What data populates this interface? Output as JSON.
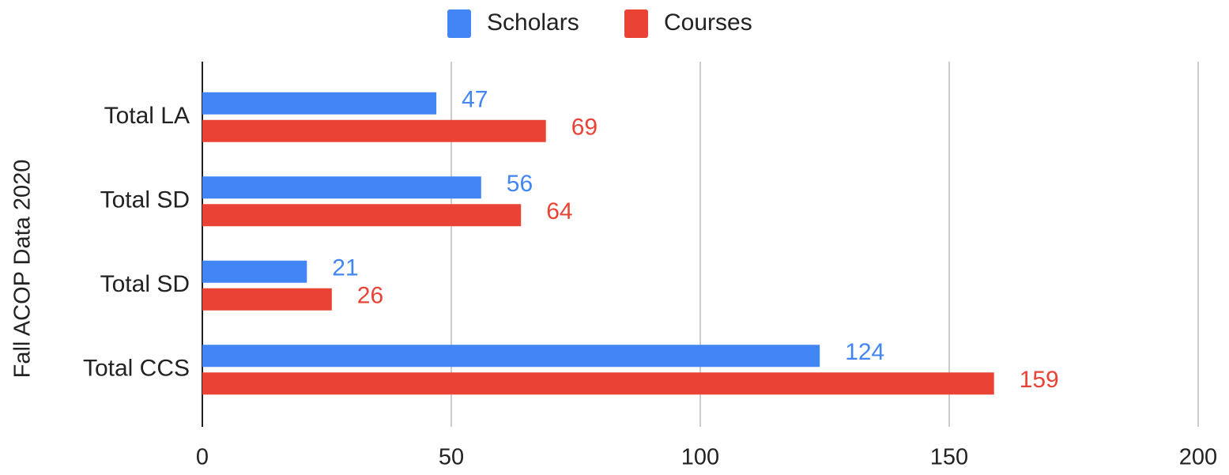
{
  "chart_data": {
    "type": "barh",
    "ylabel": "Fall ACOP Data 2020",
    "categories": [
      "Total LA",
      "Total SD",
      "Total SD",
      "Total CCS"
    ],
    "series": [
      {
        "name": "Scholars",
        "color": "#4285f4",
        "values": [
          47,
          56,
          21,
          124
        ]
      },
      {
        "name": "Courses",
        "color": "#ea4335",
        "values": [
          69,
          64,
          26,
          159
        ]
      }
    ],
    "xlim": [
      0,
      200
    ],
    "xticks": [
      0,
      50,
      100,
      150,
      200
    ],
    "grid": true,
    "legend": "top"
  }
}
